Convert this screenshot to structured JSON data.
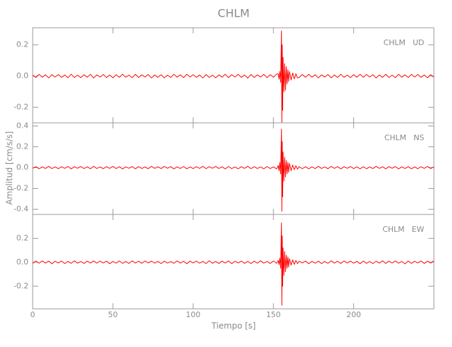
{
  "chart_data": {
    "type": "line",
    "title": "CHLM",
    "xlabel": "Tiempo [s]",
    "ylabel": "Amplitud [cm/s/s]",
    "color": "#ff0000",
    "xlim": [
      0,
      250
    ],
    "xticks": [
      0,
      50,
      100,
      150,
      200
    ],
    "x": [
      0,
      2,
      4,
      6,
      8,
      10,
      12,
      14,
      16,
      18,
      20,
      22,
      24,
      26,
      28,
      30,
      32,
      34,
      36,
      38,
      40,
      42,
      44,
      46,
      48,
      50,
      52,
      54,
      56,
      58,
      60,
      62,
      64,
      66,
      68,
      70,
      72,
      74,
      76,
      78,
      80,
      82,
      84,
      86,
      88,
      90,
      92,
      94,
      96,
      98,
      100,
      102,
      104,
      106,
      108,
      110,
      112,
      114,
      116,
      118,
      120,
      122,
      124,
      126,
      128,
      130,
      132,
      134,
      136,
      138,
      140,
      142,
      144,
      146,
      148,
      150,
      152,
      153,
      153.5,
      154,
      154.5,
      155,
      155.25,
      155.5,
      155.75,
      156,
      156.5,
      157,
      157.5,
      158,
      158.5,
      159,
      159.5,
      160,
      161,
      162,
      163,
      164,
      165,
      166,
      168,
      170,
      172,
      174,
      176,
      178,
      180,
      182,
      184,
      186,
      188,
      190,
      192,
      194,
      196,
      198,
      200,
      202,
      204,
      206,
      208,
      210,
      212,
      214,
      216,
      218,
      220,
      222,
      224,
      226,
      228,
      230,
      232,
      234,
      236,
      238,
      240,
      242,
      244,
      246,
      248,
      250
    ],
    "panels": [
      {
        "annotation": "CHLM   UD",
        "ylim": [
          -0.3,
          0.31
        ],
        "yticks": [
          -0.2,
          {
            "value": 0,
            "label": "0.0"
          },
          0.2
        ],
        "values": [
          0.006,
          -0.009,
          0.011,
          -0.007,
          0.008,
          -0.012,
          0.009,
          -0.006,
          0.01,
          -0.008,
          0.007,
          -0.011,
          0.012,
          -0.009,
          0.006,
          -0.01,
          0.009,
          -0.007,
          0.011,
          -0.012,
          0.008,
          -0.006,
          0.01,
          -0.009,
          0.007,
          -0.011,
          0.009,
          -0.008,
          0.012,
          -0.007,
          0.006,
          -0.01,
          0.011,
          -0.009,
          0.008,
          -0.006,
          0.01,
          -0.012,
          0.007,
          -0.008,
          0.009,
          -0.011,
          0.006,
          -0.009,
          0.012,
          -0.007,
          0.008,
          -0.01,
          0.011,
          -0.006,
          0.009,
          -0.008,
          0.007,
          -0.012,
          0.01,
          -0.009,
          0.006,
          -0.011,
          0.008,
          -0.007,
          0.012,
          -0.01,
          0.009,
          -0.006,
          0.011,
          -0.008,
          0.007,
          -0.013,
          0.01,
          -0.009,
          0.008,
          -0.006,
          0.011,
          -0.01,
          0.009,
          -0.007,
          0.012,
          0.015,
          -0.02,
          0.03,
          -0.04,
          0.29,
          -0.3,
          0.2,
          -0.22,
          0.12,
          -0.1,
          0.08,
          -0.09,
          0.06,
          -0.05,
          0.04,
          -0.035,
          0.03,
          -0.025,
          0.02,
          -0.018,
          0.015,
          -0.012,
          -0.009,
          0.01,
          -0.008,
          0.011,
          -0.007,
          0.009,
          -0.012,
          0.008,
          -0.006,
          0.01,
          -0.011,
          0.007,
          -0.009,
          0.012,
          -0.008,
          0.006,
          -0.01,
          0.009,
          -0.007,
          0.011,
          -0.008,
          0.01,
          -0.006,
          0.009,
          -0.012,
          0.007,
          -0.008,
          0.011,
          -0.009,
          0.006,
          -0.01,
          0.012,
          -0.007,
          0.008,
          -0.009,
          0.011,
          -0.006,
          0.01,
          -0.008,
          0.007,
          -0.011,
          0.009,
          -0.007
        ]
      },
      {
        "annotation": "CHLM   NS",
        "ylim": [
          -0.45,
          0.43
        ],
        "yticks": [
          -0.4,
          -0.2,
          {
            "value": 0,
            "label": "0.0"
          },
          0.2,
          0.4
        ],
        "values": [
          -0.006,
          0.009,
          -0.011,
          0.007,
          -0.008,
          0.012,
          -0.009,
          0.006,
          -0.01,
          0.008,
          -0.007,
          0.011,
          -0.012,
          0.009,
          -0.006,
          0.01,
          -0.009,
          0.007,
          -0.011,
          0.012,
          -0.008,
          0.006,
          -0.01,
          0.009,
          -0.007,
          0.011,
          -0.009,
          0.008,
          -0.012,
          0.007,
          -0.006,
          0.01,
          -0.011,
          0.009,
          -0.008,
          0.006,
          -0.01,
          0.012,
          -0.007,
          0.008,
          -0.009,
          0.011,
          -0.006,
          0.009,
          -0.012,
          0.007,
          -0.008,
          0.01,
          -0.011,
          0.006,
          -0.009,
          0.008,
          -0.007,
          0.012,
          -0.01,
          0.009,
          -0.006,
          0.011,
          -0.008,
          0.007,
          -0.012,
          0.01,
          -0.009,
          0.006,
          -0.011,
          0.008,
          -0.007,
          0.013,
          -0.01,
          0.009,
          -0.008,
          0.006,
          -0.011,
          0.01,
          -0.009,
          0.007,
          -0.012,
          0.02,
          -0.03,
          0.05,
          -0.06,
          0.37,
          -0.42,
          0.25,
          -0.28,
          0.15,
          -0.13,
          0.1,
          -0.09,
          0.07,
          -0.06,
          0.05,
          -0.045,
          0.04,
          -0.03,
          0.025,
          -0.02,
          0.018,
          -0.015,
          0.009,
          -0.01,
          0.008,
          -0.011,
          0.007,
          -0.009,
          0.012,
          -0.008,
          0.006,
          -0.01,
          0.011,
          -0.007,
          0.009,
          -0.012,
          0.008,
          -0.006,
          0.01,
          -0.009,
          0.007,
          -0.011,
          0.008,
          -0.01,
          0.006,
          -0.009,
          0.012,
          -0.007,
          0.008,
          -0.011,
          0.009,
          -0.006,
          0.01,
          -0.012,
          0.007,
          -0.008,
          0.009,
          -0.011,
          0.006,
          -0.01,
          0.008,
          -0.007,
          0.011,
          -0.009,
          0.007
        ]
      },
      {
        "annotation": "CHLM   EW",
        "ylim": [
          -0.39,
          0.4
        ],
        "yticks": [
          -0.2,
          {
            "value": 0,
            "label": "0.0"
          },
          0.2
        ],
        "values": [
          -0.009,
          0.01,
          -0.008,
          0.011,
          -0.007,
          0.009,
          -0.012,
          0.008,
          -0.006,
          0.01,
          -0.011,
          0.007,
          -0.009,
          0.012,
          -0.008,
          0.006,
          -0.01,
          0.009,
          -0.007,
          0.011,
          -0.008,
          0.01,
          -0.006,
          0.009,
          -0.012,
          0.007,
          -0.008,
          0.011,
          -0.009,
          0.006,
          -0.01,
          0.012,
          -0.007,
          0.008,
          -0.009,
          0.011,
          -0.006,
          0.01,
          -0.008,
          0.007,
          -0.011,
          0.009,
          -0.007,
          0.006,
          -0.009,
          0.011,
          -0.007,
          0.008,
          -0.012,
          0.009,
          -0.006,
          0.01,
          -0.008,
          0.007,
          -0.011,
          0.012,
          -0.009,
          0.006,
          -0.01,
          0.009,
          -0.007,
          0.011,
          -0.012,
          0.008,
          -0.006,
          0.01,
          -0.009,
          0.007,
          -0.011,
          0.009,
          -0.008,
          0.012,
          -0.007,
          0.006,
          -0.01,
          0.011,
          -0.009,
          0.015,
          -0.02,
          0.035,
          -0.05,
          0.33,
          -0.36,
          0.22,
          -0.2,
          0.12,
          -0.11,
          0.09,
          -0.08,
          0.06,
          -0.05,
          0.045,
          -0.04,
          0.03,
          -0.025,
          0.02,
          -0.018,
          0.015,
          -0.012,
          0.008,
          -0.006,
          0.01,
          -0.012,
          0.007,
          -0.008,
          0.009,
          -0.011,
          0.006,
          -0.009,
          0.012,
          -0.007,
          0.008,
          -0.01,
          0.011,
          -0.006,
          0.009,
          -0.008,
          0.007,
          -0.012,
          0.01,
          -0.009,
          0.006,
          -0.011,
          0.008,
          -0.007,
          0.012,
          -0.01,
          0.009,
          -0.006,
          0.011,
          -0.008,
          0.007,
          -0.013,
          0.01,
          -0.009,
          0.008,
          -0.006,
          0.011,
          -0.01,
          0.009,
          -0.007,
          0.012
        ]
      }
    ]
  }
}
